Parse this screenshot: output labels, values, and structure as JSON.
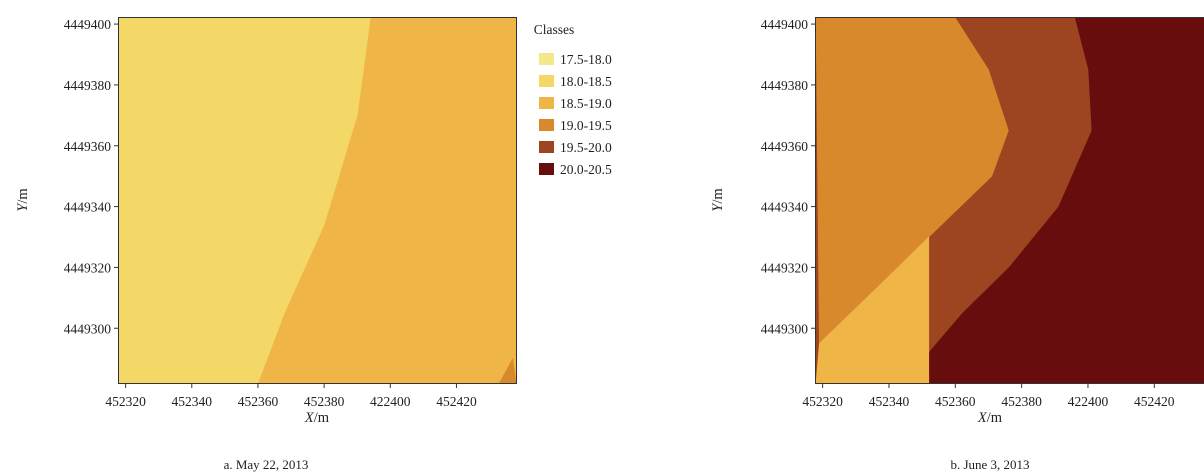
{
  "chart_data": [
    {
      "type": "contour",
      "caption": "a. May 22, 2013",
      "xlabel": "X/m",
      "ylabel": "Y/m",
      "xlabel_parts": {
        "var": "X",
        "unit": "/m"
      },
      "ylabel_parts": {
        "var": "Y",
        "unit": "/m"
      },
      "xticks": [
        "452320",
        "452340",
        "452360",
        "452380",
        "422400",
        "452420"
      ],
      "yticks": [
        "4449300",
        "4449320",
        "4449340",
        "4449360",
        "4449380",
        "4449400"
      ],
      "xlim": [
        452318,
        452438
      ],
      "ylim": [
        4449282,
        4449402
      ],
      "regions_present": [
        "17.5-18.0",
        "18.0-18.5",
        "18.5-19.0",
        "19.0-19.5"
      ],
      "boundaries": [
        {
          "classes": [
            "17.5-18.0",
            "18.0-18.5"
          ],
          "points": [
            [
              452323,
              4449402
            ],
            [
              452321,
              4449385
            ],
            [
              452319,
              4449360
            ]
          ]
        },
        {
          "classes": [
            "18.0-18.5",
            "18.5-19.0"
          ],
          "points": [
            [
              452394,
              4449402
            ],
            [
              452390,
              4449370
            ],
            [
              452380,
              4449334
            ],
            [
              452368,
              4449305
            ],
            [
              452360,
              4449282
            ]
          ]
        },
        {
          "classes": [
            "18.5-19.0",
            "19.0-19.5"
          ],
          "points": [
            [
              452433,
              4449282
            ],
            [
              452437,
              4449290
            ]
          ]
        }
      ]
    },
    {
      "type": "contour",
      "caption": "b. June 3, 2013",
      "xlabel": "X/m",
      "ylabel": "Y/m",
      "xlabel_parts": {
        "var": "X",
        "unit": "/m"
      },
      "ylabel_parts": {
        "var": "Y",
        "unit": "/m"
      },
      "xticks": [
        "452320",
        "452340",
        "452360",
        "452380",
        "422400",
        "452420"
      ],
      "yticks": [
        "4449300",
        "4449320",
        "4449340",
        "4449360",
        "4449380",
        "4449400"
      ],
      "xlim": [
        452318,
        452438
      ],
      "ylim": [
        4449282,
        4449402
      ],
      "regions_present": [
        "18.5-19.0",
        "19.0-19.5",
        "19.5-20.0",
        "20.0-20.5"
      ],
      "boundaries": [
        {
          "classes": [
            "18.5-19.0",
            "19.0-19.5"
          ],
          "points": [
            [
              452319,
              4449295
            ],
            [
              452338,
              4449315
            ],
            [
              452352,
              4449330
            ],
            [
              452371,
              4449350
            ],
            [
              452376,
              4449365
            ],
            [
              452370,
              4449385
            ],
            [
              452360,
              4449402
            ]
          ]
        },
        {
          "classes": [
            "19.0-19.5",
            "19.5-20.0"
          ],
          "points": [
            [
              452344,
              4449282
            ],
            [
              452362,
              4449305
            ],
            [
              452376,
              4449320
            ],
            [
              452391,
              4449340
            ],
            [
              452401,
              4449365
            ],
            [
              452400,
              4449385
            ],
            [
              452396,
              4449402
            ]
          ]
        }
      ]
    }
  ],
  "legend": {
    "title": "Classes",
    "placement": "right of panel a",
    "items": [
      {
        "label": "17.5-18.0",
        "color": "#f5e88a"
      },
      {
        "label": "18.0-18.5",
        "color": "#f3d868"
      },
      {
        "label": "18.5-19.0",
        "color": "#efb547"
      },
      {
        "label": "19.0-19.5",
        "color": "#d8892c"
      },
      {
        "label": "19.5-20.0",
        "color": "#9c4520"
      },
      {
        "label": "20.0-20.5",
        "color": "#680d0d"
      }
    ]
  }
}
